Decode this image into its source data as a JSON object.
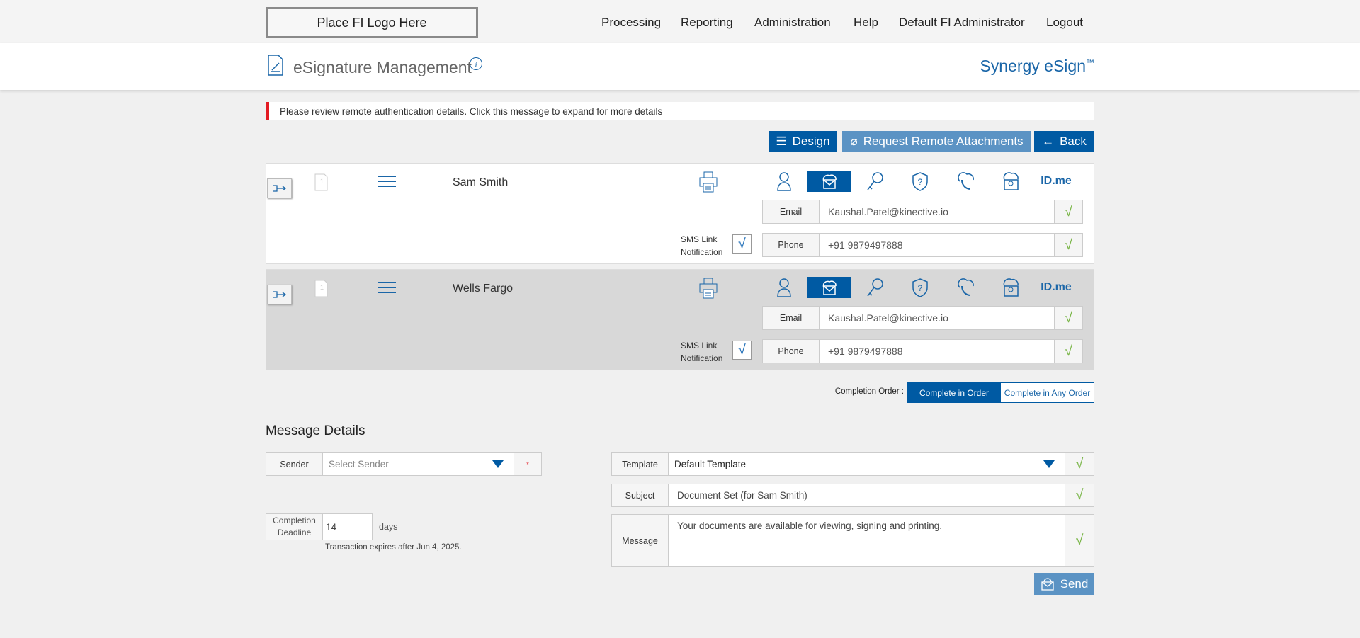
{
  "topbar": {
    "logo": "Place FI Logo Here",
    "nav": [
      "Processing",
      "Reporting",
      "Administration",
      "Help",
      "Default FI Administrator",
      "Logout"
    ]
  },
  "header": {
    "title": "eSignature Management",
    "brand": "Synergy eSign",
    "brand_mark": "™"
  },
  "alert": "Please review remote authentication details. Click this message to expand for more details",
  "toolbar": {
    "design": "Design",
    "request": "Request Remote Attachments",
    "back": "Back"
  },
  "signers": [
    {
      "name": "Sam Smith",
      "email_label": "Email",
      "email": "Kaushal.Patel@kinective.io",
      "phone_label": "Phone",
      "phone": "+91 9879497888",
      "sms_label_1": "SMS Link",
      "sms_label_2": "Notification",
      "idme": "ID.me",
      "selected_auth": "email"
    },
    {
      "name": "Wells Fargo",
      "email_label": "Email",
      "email": "Kaushal.Patel@kinective.io",
      "phone_label": "Phone",
      "phone": "+91 9879497888",
      "sms_label_1": "SMS Link",
      "sms_label_2": "Notification",
      "idme": "ID.me",
      "selected_auth": "email"
    }
  ],
  "completion": {
    "label": "Completion Order :",
    "in_order": "Complete in Order",
    "any_order": "Complete in Any Order",
    "selected": "Complete in Order"
  },
  "message": {
    "heading": "Message Details",
    "sender_label": "Sender",
    "sender_placeholder": "Select Sender",
    "required_mark": "*",
    "deadline_label": "Completion Deadline",
    "deadline_value": "14",
    "days": "days",
    "expires": "Transaction expires after Jun 4, 2025.",
    "template_label": "Template",
    "template_value": "Default Template",
    "subject_label": "Subject",
    "subject_value": "Document Set (for Sam Smith)",
    "message_label": "Message",
    "message_value": "Your documents are available for viewing, signing and printing.",
    "send": "Send"
  },
  "colors": {
    "primary": "#005aa3",
    "secondary": "#5b93c4",
    "alert": "#e31b23",
    "check": "#7ab648"
  }
}
